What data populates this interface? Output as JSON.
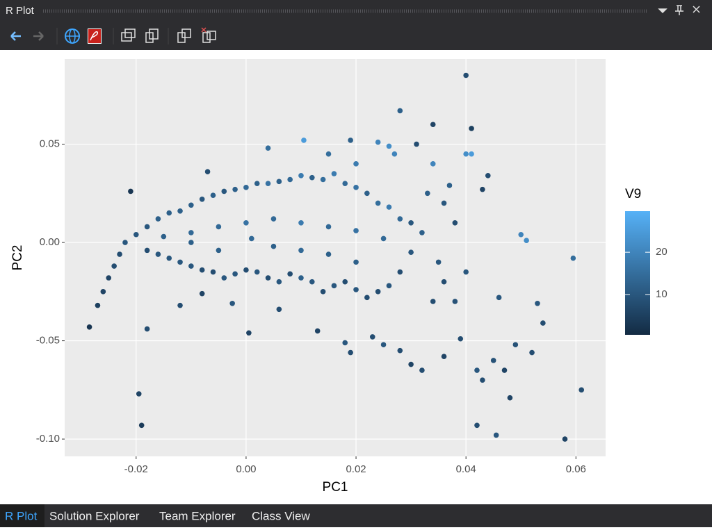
{
  "window": {
    "title": "R Plot"
  },
  "tabs": [
    "R Plot",
    "Solution Explorer",
    "Team Explorer",
    "Class View"
  ],
  "chart_data": {
    "type": "scatter",
    "x_label": "PC1",
    "y_label": "PC2",
    "color_label": "V9",
    "color_scale": {
      "low": "#132B43",
      "high": "#56B1F7"
    },
    "colorlim": [
      0.5,
      29.7
    ],
    "colorticks": [
      10,
      20
    ],
    "xlim": [
      -0.033,
      0.0654
    ],
    "ylim": [
      -0.1088,
      0.0933
    ],
    "xticks": [
      {
        "value": -0.02,
        "label": "-0.02"
      },
      {
        "value": 0,
        "label": "0.00"
      },
      {
        "value": 0.02,
        "label": "0.02"
      },
      {
        "value": 0.04,
        "label": "0.04"
      },
      {
        "value": 0.06,
        "label": "0.06"
      }
    ],
    "yticks": [
      {
        "value": -0.1,
        "label": "-0.10"
      },
      {
        "value": -0.05,
        "label": "-0.05"
      },
      {
        "value": 0,
        "label": "0.00"
      },
      {
        "value": 0.05,
        "label": "0.05"
      }
    ],
    "grid": true,
    "x": [
      0.04,
      0.028,
      0.034,
      0.041,
      0.04,
      0.041,
      0.0105,
      -0.021,
      0.0595,
      0.061,
      0.058,
      0.042,
      0.0455,
      -0.0195,
      -0.019,
      -0.018,
      0.0005,
      -0.0285,
      0.05,
      0.051,
      0.048,
      0.054,
      0.053,
      0.052,
      0.049,
      0.046,
      0.044,
      0.043,
      0.037,
      0.031,
      0.024,
      0.019,
      0.004,
      -0.007,
      0.015,
      0.026,
      0.027,
      0.034,
      0.02,
      0.03,
      0.032,
      0.036,
      0.039,
      0.042,
      0.043,
      0.045,
      0.047,
      0.018,
      0.019,
      0.025,
      0.028,
      0.023,
      -0.012,
      -0.008,
      -0.0025,
      0.006,
      0.013,
      -0.027,
      -0.026,
      -0.025,
      -0.024,
      -0.023,
      -0.022,
      -0.02,
      -0.018,
      -0.016,
      -0.014,
      -0.012,
      -0.01,
      -0.008,
      -0.006,
      -0.004,
      -0.002,
      0.0,
      0.002,
      0.004,
      0.006,
      0.008,
      0.01,
      0.012,
      0.014,
      0.016,
      0.018,
      0.02,
      0.022,
      0.024,
      0.026,
      0.028,
      0.03,
      0.032,
      0.03,
      0.028,
      0.026,
      0.024,
      0.022,
      0.02,
      0.018,
      0.016,
      0.014,
      0.012,
      0.01,
      0.008,
      0.006,
      0.004,
      0.002,
      0.0,
      -0.002,
      -0.004,
      -0.006,
      -0.008,
      -0.01,
      -0.012,
      -0.014,
      -0.016,
      -0.018,
      -0.015,
      -0.01,
      -0.005,
      0.0,
      0.005,
      0.01,
      0.015,
      0.02,
      0.025,
      -0.01,
      -0.005,
      0.001,
      0.005,
      0.01,
      0.015,
      0.02,
      0.035,
      0.036,
      0.038,
      0.034,
      0.04,
      0.038,
      0.036,
      0.033
    ],
    "y": [
      0.085,
      0.067,
      0.06,
      0.058,
      0.045,
      0.045,
      0.052,
      0.026,
      -0.008,
      -0.075,
      -0.1,
      -0.093,
      -0.098,
      -0.077,
      -0.093,
      -0.044,
      -0.046,
      -0.043,
      0.004,
      0.001,
      -0.079,
      -0.041,
      -0.031,
      -0.056,
      -0.052,
      -0.028,
      0.034,
      0.027,
      0.029,
      0.05,
      0.051,
      0.052,
      0.048,
      0.036,
      0.045,
      0.049,
      0.045,
      0.04,
      0.04,
      -0.062,
      -0.065,
      -0.058,
      -0.049,
      -0.065,
      -0.07,
      -0.06,
      -0.065,
      -0.051,
      -0.056,
      -0.052,
      -0.055,
      -0.048,
      -0.032,
      -0.026,
      -0.031,
      -0.034,
      -0.045,
      -0.032,
      -0.025,
      -0.018,
      -0.012,
      -0.006,
      0.0,
      0.004,
      0.008,
      0.012,
      0.015,
      0.016,
      0.019,
      0.022,
      0.024,
      0.026,
      0.027,
      0.028,
      0.03,
      0.03,
      0.031,
      0.032,
      0.034,
      0.033,
      0.032,
      0.035,
      0.03,
      0.028,
      0.025,
      0.02,
      0.018,
      0.012,
      0.01,
      0.005,
      -0.005,
      -0.015,
      -0.022,
      -0.025,
      -0.028,
      -0.024,
      -0.02,
      -0.022,
      -0.025,
      -0.02,
      -0.018,
      -0.016,
      -0.02,
      -0.018,
      -0.015,
      -0.014,
      -0.016,
      -0.018,
      -0.015,
      -0.014,
      -0.012,
      -0.01,
      -0.008,
      -0.006,
      -0.004,
      0.003,
      0.005,
      0.008,
      0.01,
      0.012,
      0.01,
      0.008,
      0.006,
      0.002,
      0.0,
      -0.004,
      0.002,
      -0.002,
      -0.004,
      -0.006,
      -0.01,
      -0.01,
      -0.02,
      -0.03,
      -0.03,
      -0.015,
      0.01,
      0.02,
      0.025
    ],
    "color_values": [
      8,
      12,
      6,
      5,
      22,
      25,
      25,
      3,
      15,
      8,
      6,
      8,
      10,
      6,
      4,
      8,
      6,
      3,
      20,
      22,
      6,
      8,
      10,
      8,
      9,
      10,
      8,
      6,
      12,
      8,
      20,
      12,
      15,
      8,
      15,
      22,
      20,
      20,
      18,
      6,
      8,
      6,
      8,
      10,
      8,
      9,
      6,
      10,
      8,
      10,
      8,
      8,
      8,
      6,
      10,
      8,
      6,
      5,
      6,
      6,
      8,
      8,
      10,
      10,
      10,
      12,
      12,
      12,
      12,
      10,
      12,
      10,
      12,
      14,
      12,
      16,
      12,
      14,
      18,
      12,
      15,
      18,
      14,
      16,
      12,
      15,
      18,
      14,
      10,
      12,
      10,
      8,
      10,
      8,
      8,
      10,
      8,
      10,
      8,
      10,
      12,
      8,
      10,
      8,
      10,
      8,
      10,
      10,
      8,
      8,
      10,
      10,
      10,
      10,
      8,
      12,
      14,
      14,
      16,
      14,
      18,
      14,
      16,
      14,
      12,
      12,
      14,
      12,
      14,
      12,
      12,
      10,
      8,
      9,
      8,
      10,
      8,
      10,
      12
    ]
  }
}
